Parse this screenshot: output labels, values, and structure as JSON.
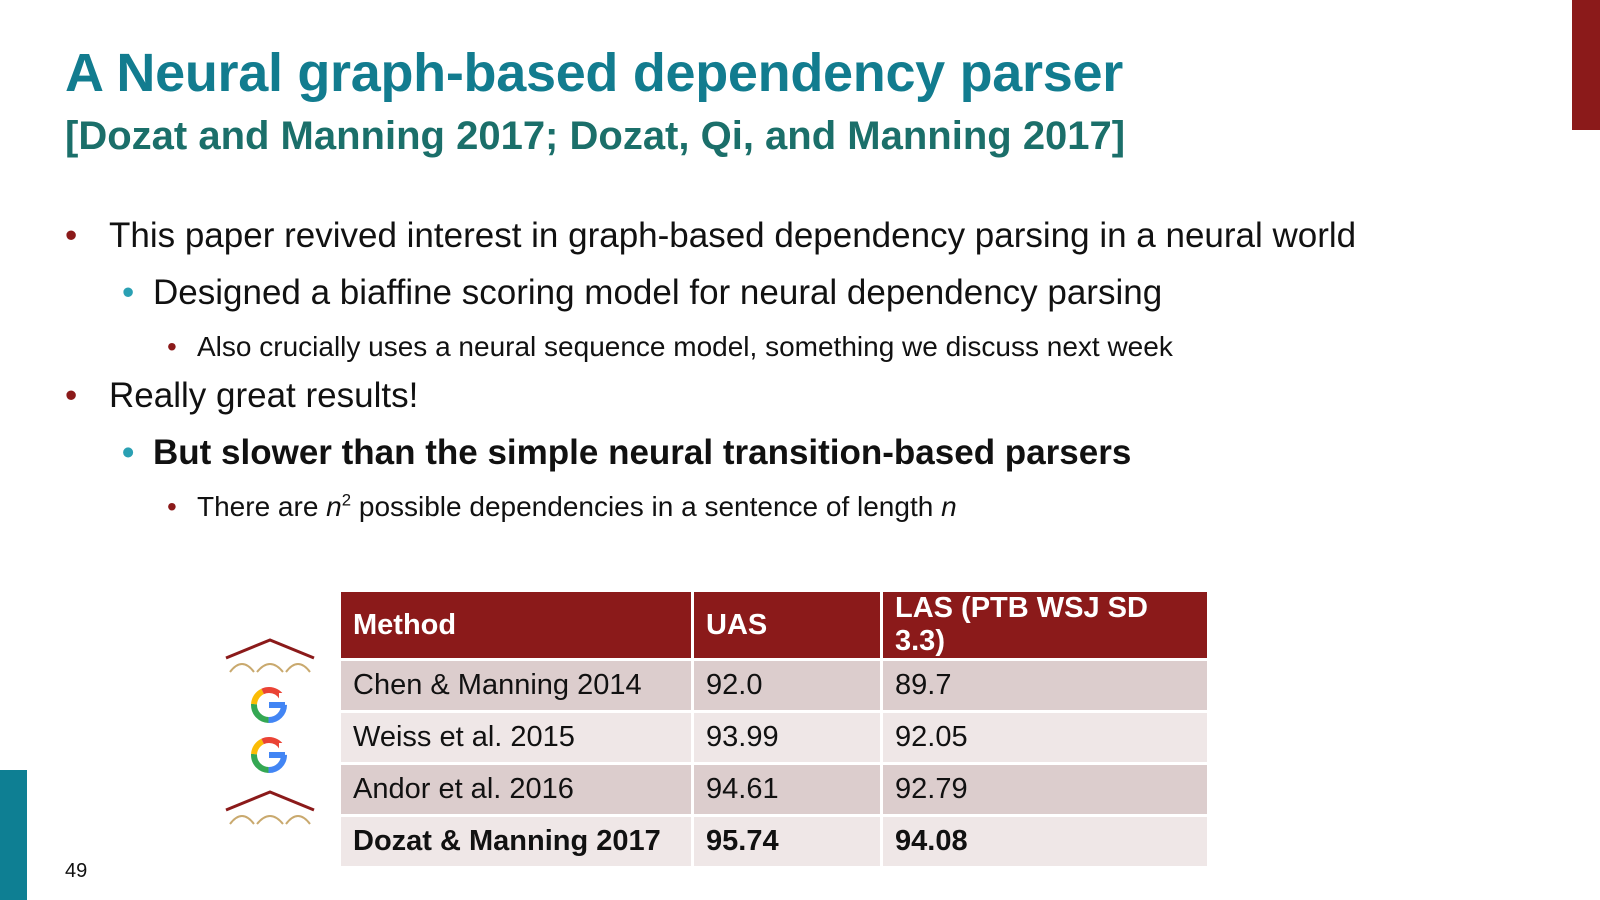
{
  "slide": {
    "title": "A Neural graph-based dependency parser",
    "subtitle": "[Dozat and Manning 2017; Dozat, Qi, and Manning 2017]",
    "page_number": "49"
  },
  "bullets": {
    "b1": {
      "marker": "•",
      "text": "This paper revived interest in graph-based dependency parsing in a neural world"
    },
    "b1_1": {
      "marker": "•",
      "text": "Designed a biaffine scoring model for neural dependency parsing"
    },
    "b1_1_1": {
      "marker": "•",
      "text": "Also crucially uses a neural sequence model, something we discuss next week"
    },
    "b2": {
      "marker": "•",
      "text": "Really great results!"
    },
    "b2_1": {
      "marker": "•",
      "text": "But slower than the simple neural transition-based parsers"
    },
    "b2_1_1": {
      "marker": "•",
      "prefix": "There are ",
      "var1": "n",
      "exp": "2",
      "middle": " possible dependencies in a sentence of length ",
      "var2": "n"
    }
  },
  "table": {
    "headers": [
      "Method",
      "UAS",
      "LAS (PTB WSJ SD 3.3)"
    ],
    "rows": [
      {
        "logo": "stanford-arches-logo",
        "method": "Chen & Manning 2014",
        "uas": "92.0",
        "las": "89.7"
      },
      {
        "logo": "google-logo",
        "logo_letter": "G",
        "method": "Weiss et al. 2015",
        "uas": "93.99",
        "las": "92.05"
      },
      {
        "logo": "google-logo",
        "logo_letter": "G",
        "method": "Andor et al. 2016",
        "uas": "94.61",
        "las": "92.79"
      },
      {
        "logo": "stanford-arches-logo",
        "method": "Dozat & Manning 2017",
        "uas": "95.74",
        "las": "94.08"
      }
    ]
  },
  "colors": {
    "title": "#127c8f",
    "subtitle": "#1b6f6a",
    "accent_red": "#8b1a1a",
    "accent_teal": "#0e7f93",
    "row_dark": "#dccdcd",
    "row_light": "#efe7e7",
    "google_blue": "#4285F4",
    "google_red": "#EA4335",
    "google_yellow": "#FBBC05",
    "google_green": "#34A853",
    "arch_gold": "#c9a96e"
  }
}
